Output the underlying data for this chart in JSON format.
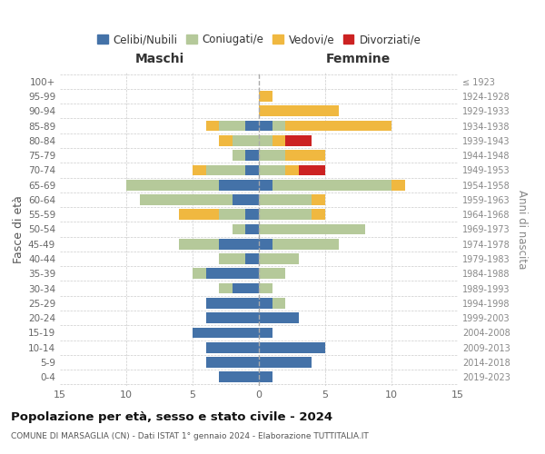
{
  "age_groups": [
    "0-4",
    "5-9",
    "10-14",
    "15-19",
    "20-24",
    "25-29",
    "30-34",
    "35-39",
    "40-44",
    "45-49",
    "50-54",
    "55-59",
    "60-64",
    "65-69",
    "70-74",
    "75-79",
    "80-84",
    "85-89",
    "90-94",
    "95-99",
    "100+"
  ],
  "birth_years": [
    "2019-2023",
    "2014-2018",
    "2009-2013",
    "2004-2008",
    "1999-2003",
    "1994-1998",
    "1989-1993",
    "1984-1988",
    "1979-1983",
    "1974-1978",
    "1969-1973",
    "1964-1968",
    "1959-1963",
    "1954-1958",
    "1949-1953",
    "1944-1948",
    "1939-1943",
    "1934-1938",
    "1929-1933",
    "1924-1928",
    "≤ 1923"
  ],
  "colors": {
    "celibi": "#4472a8",
    "coniugati": "#b5c99a",
    "vedovi": "#f0b840",
    "divorziati": "#cc2222"
  },
  "maschi": {
    "celibi": [
      3,
      4,
      4,
      5,
      4,
      4,
      2,
      4,
      1,
      3,
      1,
      1,
      2,
      3,
      1,
      1,
      0,
      1,
      0,
      0,
      0
    ],
    "coniugati": [
      0,
      0,
      0,
      0,
      0,
      0,
      1,
      1,
      2,
      3,
      1,
      2,
      7,
      7,
      3,
      1,
      2,
      2,
      0,
      0,
      0
    ],
    "vedovi": [
      0,
      0,
      0,
      0,
      0,
      0,
      0,
      0,
      0,
      0,
      0,
      3,
      0,
      0,
      1,
      0,
      1,
      1,
      0,
      0,
      0
    ],
    "divorziati": [
      0,
      0,
      0,
      0,
      0,
      0,
      0,
      0,
      0,
      0,
      0,
      0,
      0,
      0,
      0,
      0,
      0,
      0,
      0,
      0,
      0
    ]
  },
  "femmine": {
    "celibi": [
      1,
      4,
      5,
      1,
      3,
      1,
      0,
      0,
      0,
      1,
      0,
      0,
      0,
      1,
      0,
      0,
      0,
      1,
      0,
      0,
      0
    ],
    "coniugati": [
      0,
      0,
      0,
      0,
      0,
      1,
      1,
      2,
      3,
      5,
      8,
      4,
      4,
      9,
      2,
      2,
      1,
      1,
      0,
      0,
      0
    ],
    "vedovi": [
      0,
      0,
      0,
      0,
      0,
      0,
      0,
      0,
      0,
      0,
      0,
      1,
      1,
      1,
      1,
      3,
      1,
      8,
      6,
      1,
      0
    ],
    "divorziati": [
      0,
      0,
      0,
      0,
      0,
      0,
      0,
      0,
      0,
      0,
      0,
      0,
      0,
      0,
      2,
      0,
      2,
      0,
      0,
      0,
      0
    ]
  },
  "xlim": 15,
  "title": "Popolazione per età, sesso e stato civile - 2024",
  "subtitle": "COMUNE DI MARSAGLIA (CN) - Dati ISTAT 1° gennaio 2024 - Elaborazione TUTTITALIA.IT",
  "ylabel_left": "Fasce di età",
  "ylabel_right": "Anni di nascita",
  "xlabel_maschi": "Maschi",
  "xlabel_femmine": "Femmine",
  "legend_labels": [
    "Celibi/Nubili",
    "Coniugati/e",
    "Vedovi/e",
    "Divorziati/e"
  ],
  "background_color": "#ffffff",
  "grid_color": "#cccccc"
}
